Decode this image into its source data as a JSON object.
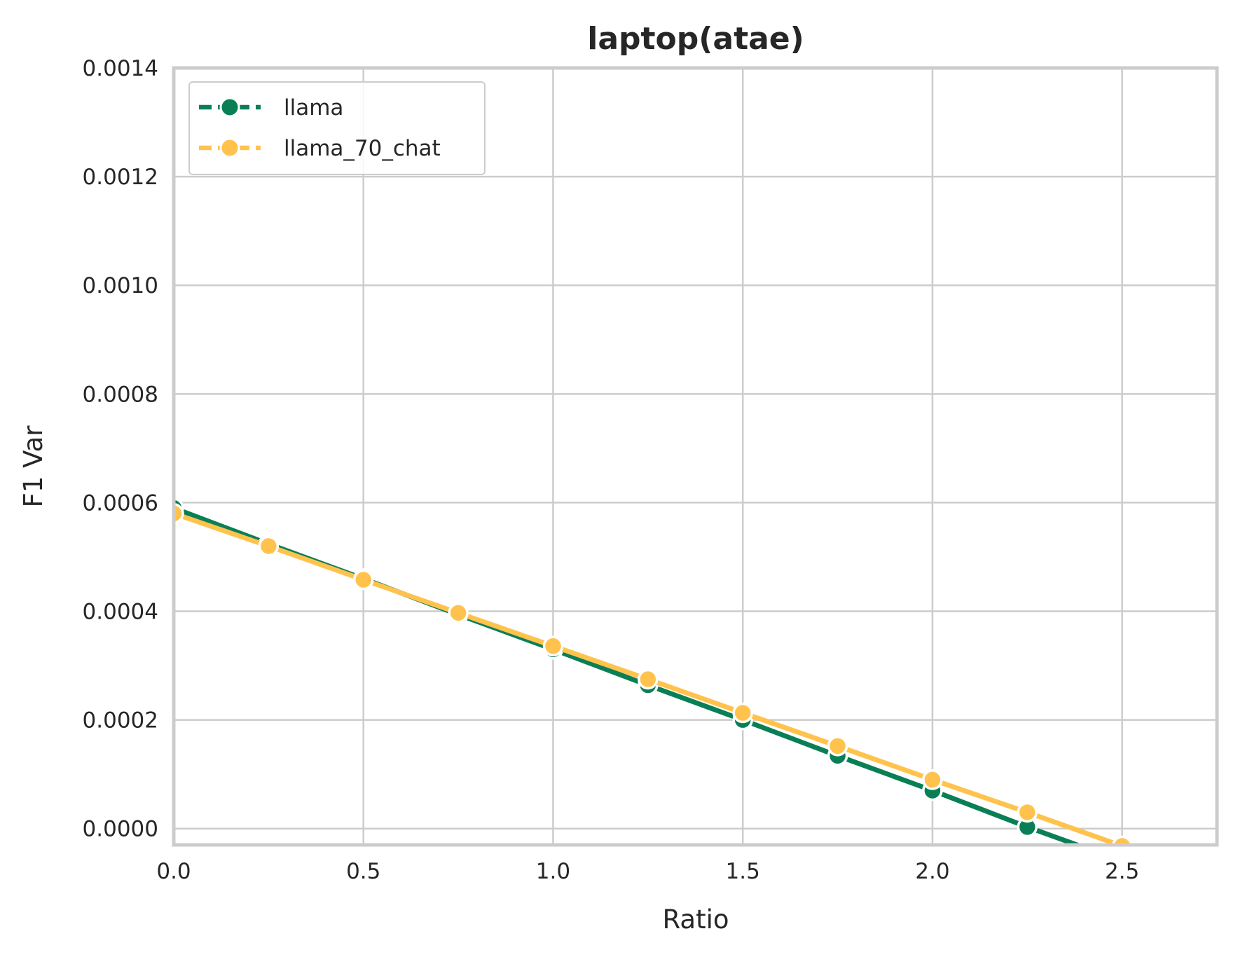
{
  "chart_data": {
    "type": "line",
    "title": "laptop(atae)",
    "xlabel": "Ratio",
    "ylabel": "F1 Var",
    "xlim": [
      0.0,
      2.75
    ],
    "ylim": [
      -3e-05,
      0.0014
    ],
    "x_ticks": [
      0.0,
      0.5,
      1.0,
      1.5,
      2.0,
      2.5
    ],
    "x_tick_labels": [
      "0.0",
      "0.5",
      "1.0",
      "1.5",
      "2.0",
      "2.5"
    ],
    "y_ticks": [
      0.0,
      0.0002,
      0.0004,
      0.0006,
      0.0008,
      0.001,
      0.0012,
      0.0014
    ],
    "y_tick_labels": [
      "0.0000",
      "0.0002",
      "0.0004",
      "0.0006",
      "0.0008",
      "0.0010",
      "0.0012",
      "0.0014"
    ],
    "grid": true,
    "legend_position": "top-left",
    "series": [
      {
        "name": "llama",
        "color": "#0a7f55",
        "x": [
          0.0,
          0.25,
          0.5,
          0.75,
          1.0,
          1.25,
          1.5,
          1.75,
          2.0,
          2.25,
          2.5
        ],
        "y": [
          0.00059,
          0.000524,
          0.00046,
          0.000394,
          0.00033,
          0.000264,
          0.0002,
          0.000134,
          7e-05,
          3e-06,
          -6e-05
        ]
      },
      {
        "name": "llama_70_chat",
        "color": "#ffc34d",
        "x": [
          0.0,
          0.25,
          0.5,
          0.75,
          1.0,
          1.25,
          1.5,
          1.75,
          2.0,
          2.25,
          2.5
        ],
        "y": [
          0.00058,
          0.00052,
          0.000458,
          0.000397,
          0.000336,
          0.000275,
          0.000213,
          0.000152,
          9e-05,
          3e-05,
          -3.2e-05
        ]
      }
    ]
  }
}
